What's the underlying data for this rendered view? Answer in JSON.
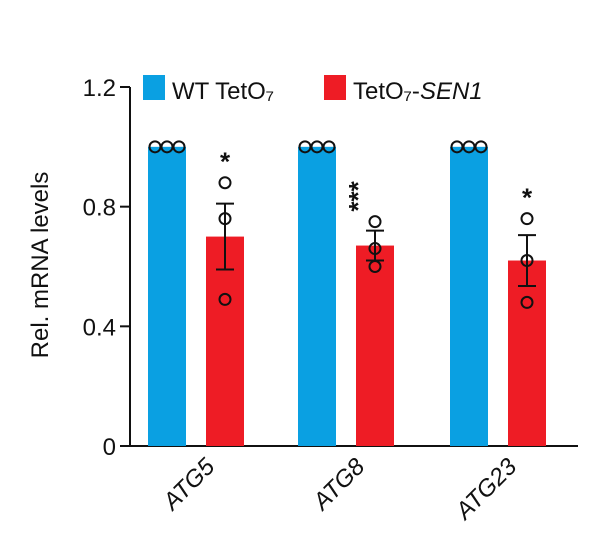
{
  "chart_data": {
    "type": "bar",
    "ylabel": "Rel. mRNA levels",
    "ylim": [
      0,
      1.2
    ],
    "yticks": [
      "0",
      "0.4",
      "0.8",
      "1.2"
    ],
    "yticks_values": [
      0,
      0.4,
      0.8,
      1.2
    ],
    "categories": [
      "ATG5",
      "ATG8",
      "ATG23"
    ],
    "legend_position": "top",
    "series": [
      {
        "name": "WT TetO₇",
        "color": "#0aa0e2",
        "values": [
          1.0,
          1.0,
          1.0
        ],
        "errors": [
          0,
          0,
          0
        ],
        "points": [
          [
            1.0,
            1.0,
            1.0
          ],
          [
            1.0,
            1.0,
            1.0
          ],
          [
            1.0,
            1.0,
            1.0
          ]
        ]
      },
      {
        "name_prefix": "TetO₇-",
        "name_italic": "SEN1",
        "color": "#ee1c25",
        "values": [
          0.7,
          0.67,
          0.62
        ],
        "errors": [
          0.11,
          0.05,
          0.085
        ],
        "points": [
          [
            0.88,
            0.76,
            0.49
          ],
          [
            0.75,
            0.66,
            0.6
          ],
          [
            0.76,
            0.62,
            0.48
          ]
        ]
      }
    ],
    "significance": [
      "*",
      "***",
      "*"
    ]
  }
}
